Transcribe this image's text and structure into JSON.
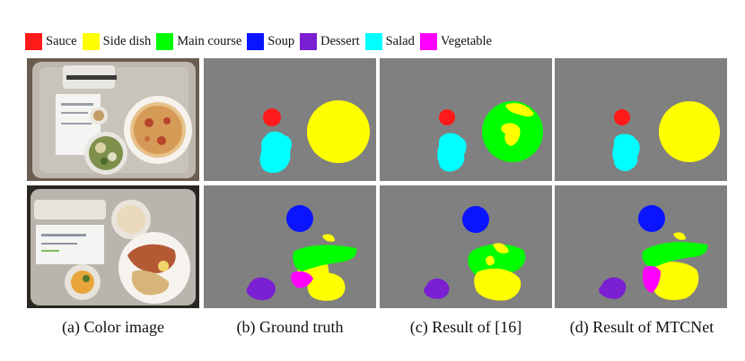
{
  "legend": [
    {
      "label": "Sauce",
      "color": "#ff1a1a"
    },
    {
      "label": "Side dish",
      "color": "#ffff00"
    },
    {
      "label": "Main course",
      "color": "#00ff00"
    },
    {
      "label": "Soup",
      "color": "#0a14ff"
    },
    {
      "label": "Dessert",
      "color": "#7a1fd1"
    },
    {
      "label": "Salad",
      "color": "#00ffff"
    },
    {
      "label": "Vegetable",
      "color": "#ff00ff"
    }
  ],
  "captions": [
    "(a)  Color image",
    "(b) Ground truth",
    "(c) Result of [16]",
    "(d) Result of MTCNet"
  ],
  "colors": {
    "background_gray": "#808080",
    "sauce": "#ff1a1a",
    "side_dish": "#ffff00",
    "main_course": "#00ff00",
    "soup": "#0a14ff",
    "dessert": "#7a1fd1",
    "salad": "#00ffff",
    "vegetable": "#ff00ff"
  }
}
